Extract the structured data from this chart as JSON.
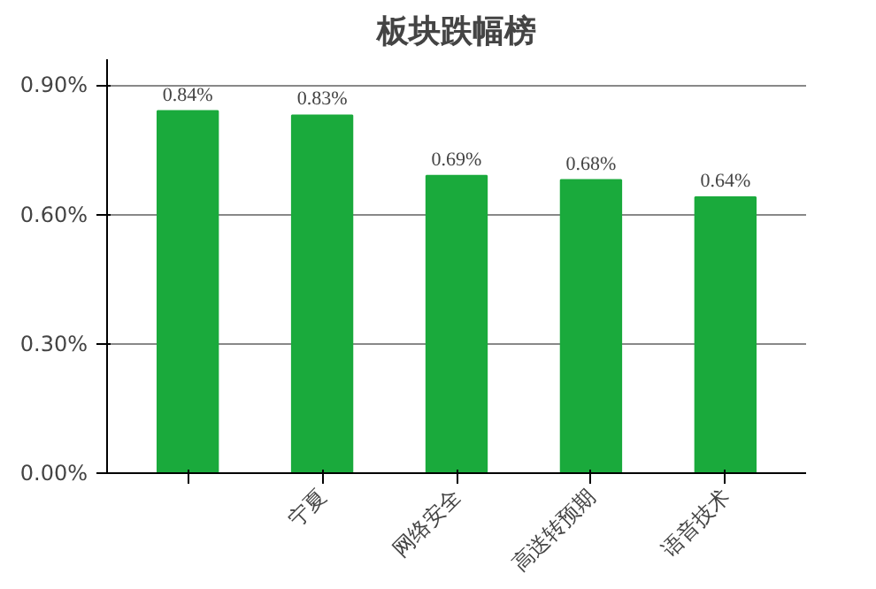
{
  "chart_data": {
    "type": "bar",
    "title": "板块跌幅榜",
    "categories": [
      null,
      "宁夏",
      "网络安全",
      "高送转预期",
      "语音技术"
    ],
    "values": [
      0.84,
      0.83,
      0.69,
      0.68,
      0.64
    ],
    "value_labels": [
      "0.84%",
      "0.83%",
      "0.69%",
      "0.68%",
      "0.64%"
    ],
    "color": "#1aaa3c",
    "ylim": [
      0,
      0.96
    ],
    "yticks": [
      {
        "value": 0,
        "label": "0.00%"
      },
      {
        "value": 0.3,
        "label": "0.30%"
      },
      {
        "value": 0.6,
        "label": "0.60%"
      },
      {
        "value": 0.9,
        "label": "0.90%"
      }
    ],
    "grid": "y"
  }
}
